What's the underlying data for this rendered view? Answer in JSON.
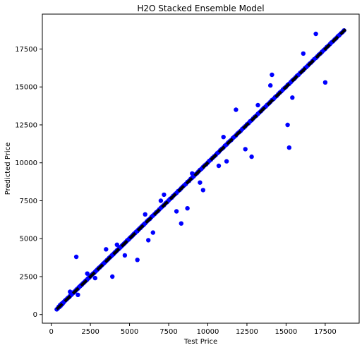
{
  "chart_data": {
    "type": "scatter",
    "title": "H2O Stacked Ensemble  Model",
    "xlabel": "Test Price",
    "ylabel": "Predicted Price",
    "xlim": [
      -570,
      19670
    ],
    "ylim": [
      -570,
      19800
    ],
    "xticks": [
      0,
      2500,
      5000,
      7500,
      10000,
      12500,
      15000,
      17500
    ],
    "xtick_labels": [
      "0",
      "2500",
      "5000",
      "7500",
      "10000",
      "12500",
      "15000",
      "17500"
    ],
    "yticks": [
      0,
      2500,
      5000,
      7500,
      10000,
      12500,
      15000,
      17500
    ],
    "ytick_labels": [
      "0",
      "2500",
      "5000",
      "7500",
      "10000",
      "12500",
      "15000",
      "17500"
    ],
    "grid": false,
    "legend": "none",
    "marker_color": "#0000ff",
    "line_color": "#000000",
    "reference_line": {
      "x": [
        350,
        18800
      ],
      "y": [
        350,
        18800
      ],
      "style": "dashed"
    },
    "series": [
      {
        "x": [
          350,
          420,
          480,
          520,
          560,
          600,
          650,
          700,
          720,
          780,
          820,
          870,
          900,
          950,
          1000,
          1050,
          1100,
          1150,
          1200,
          1250,
          1300,
          1350,
          1400,
          1450,
          1500,
          1550,
          1600,
          1650,
          1700,
          1750,
          1800,
          1850,
          1900,
          1950,
          2000,
          2050,
          2100,
          2150,
          2200,
          2250,
          2300,
          2350,
          2400,
          2450,
          2500,
          2550,
          2600,
          2650,
          2700,
          2750,
          2800,
          2850,
          2900,
          2950,
          3000,
          3050,
          3100,
          3150,
          3200,
          3250,
          3300,
          3350,
          3400,
          3450,
          3500,
          3550,
          3600,
          3650,
          3700,
          3750,
          3800,
          3850,
          3900,
          3950,
          4000,
          4050,
          4100,
          4150,
          4200,
          4250,
          4300,
          4350,
          4400,
          4450,
          4500,
          4550,
          4600,
          4650,
          4700,
          4750,
          4800,
          4850,
          4900,
          4950,
          5000,
          5050,
          5100,
          5150,
          5200,
          5250,
          5300,
          5350,
          5400,
          5450,
          5500,
          5550,
          5600,
          5650,
          5700,
          5750,
          5800,
          5850,
          5900,
          5950,
          6000,
          6100,
          6200,
          6300,
          6400,
          6500,
          6600,
          6700,
          6800,
          6900,
          7000,
          7100,
          7200,
          7300,
          7400,
          7500,
          7600,
          7700,
          7800,
          7900,
          8000,
          8100,
          8200,
          8300,
          8400,
          8500,
          8600,
          8700,
          8800,
          8900,
          9000,
          9100,
          9200,
          9300,
          9400,
          9500,
          9600,
          9700,
          9800,
          9900,
          10000,
          10100,
          10200,
          10300,
          10400,
          10500,
          10600,
          10700,
          10800,
          10900,
          11000,
          11100,
          11200,
          11300,
          11400,
          11500,
          11600,
          11700,
          11800,
          11900,
          12000,
          12100,
          12200,
          12300,
          12400,
          12500,
          12600,
          12700,
          12800,
          12900,
          13000,
          13100,
          13200,
          13300,
          13400,
          13500,
          13600,
          13700,
          13800,
          13900,
          14000,
          14100,
          14200,
          14300,
          14400,
          14500,
          14600,
          14700,
          14800,
          14900,
          15000,
          15100,
          15200,
          15300,
          15400,
          15500,
          15600,
          15700,
          15800,
          15900,
          16000,
          16100,
          16200,
          16300,
          16400,
          16500,
          16600,
          16700,
          16800,
          16900,
          17000,
          17100,
          17200,
          17300,
          17400,
          17500,
          17600,
          17700,
          17800,
          17900,
          18000,
          18100,
          18200,
          18300,
          18400,
          18500,
          18600,
          18700,
          1600,
          3900,
          5500,
          6200,
          7000,
          8300,
          8700,
          9700,
          10700,
          11200,
          11800,
          12800,
          14100,
          15200,
          16100,
          16900,
          17500,
          15100,
          15400,
          14000,
          13200,
          12400,
          11000,
          9500,
          9000,
          8000,
          7200,
          6500,
          6000,
          4700,
          4200,
          3500,
          2800,
          2300,
          1700,
          1200
        ],
        "y": [
          340,
          410,
          520,
          500,
          620,
          580,
          700,
          680,
          760,
          790,
          850,
          900,
          930,
          980,
          1020,
          1080,
          1120,
          1160,
          1230,
          1280,
          1320,
          1390,
          1420,
          1480,
          1510,
          1570,
          1620,
          1680,
          1710,
          1780,
          1830,
          1870,
          1930,
          1960,
          2030,
          2070,
          2120,
          2170,
          2230,
          2260,
          2320,
          2380,
          2410,
          2470,
          2520,
          2570,
          2620,
          2680,
          2710,
          2760,
          2820,
          2870,
          2920,
          2970,
          3020,
          3080,
          3110,
          3170,
          3220,
          3260,
          3330,
          3370,
          3420,
          3470,
          3520,
          3580,
          3620,
          3660,
          3730,
          3770,
          3820,
          3870,
          3930,
          3960,
          4020,
          4080,
          4120,
          4170,
          4230,
          4270,
          4320,
          4360,
          4420,
          4470,
          4520,
          4580,
          4610,
          4670,
          4720,
          4760,
          4820,
          4880,
          4920,
          4960,
          5030,
          5070,
          5120,
          5170,
          5210,
          5280,
          5330,
          5360,
          5430,
          5470,
          5510,
          5580,
          5620,
          5680,
          5710,
          5780,
          5820,
          5880,
          5910,
          5980,
          6010,
          6130,
          6230,
          6310,
          6430,
          6520,
          6620,
          6730,
          6810,
          6920,
          7030,
          7120,
          7210,
          7330,
          7410,
          7520,
          7630,
          7710,
          7830,
          7920,
          8010,
          8130,
          8210,
          8320,
          8430,
          8520,
          8610,
          8730,
          8810,
          8930,
          9020,
          9110,
          9230,
          9310,
          9420,
          9530,
          9610,
          9720,
          9830,
          9910,
          10020,
          10130,
          10210,
          10320,
          10420,
          10510,
          10630,
          10710,
          10830,
          10920,
          11010,
          11130,
          11210,
          11330,
          11420,
          11510,
          11630,
          11720,
          11810,
          11930,
          12020,
          12110,
          12230,
          12320,
          12410,
          12530,
          12610,
          12730,
          12810,
          12920,
          13030,
          13110,
          13230,
          13320,
          13410,
          13520,
          13630,
          13710,
          13830,
          13910,
          14020,
          14130,
          14210,
          14330,
          14410,
          14520,
          14630,
          14710,
          14830,
          14920,
          15010,
          15130,
          15210,
          15320,
          15430,
          15510,
          15620,
          15730,
          15810,
          15930,
          16020,
          16110,
          16230,
          16310,
          16420,
          16530,
          16610,
          16720,
          16830,
          16910,
          17020,
          17130,
          17210,
          17320,
          17420,
          17510,
          17630,
          17710,
          17820,
          17930,
          18010,
          18120,
          18210,
          18330,
          18410,
          18520,
          18610,
          18720,
          3800,
          2500,
          3600,
          4900,
          7500,
          6000,
          7000,
          8200,
          9800,
          10100,
          13500,
          10400,
          15800,
          11000,
          17200,
          18500,
          15300,
          12500,
          14300,
          15100,
          13800,
          10900,
          11700,
          8700,
          9300,
          6800,
          7900,
          5400,
          6600,
          3900,
          4600,
          4300,
          2400,
          2700,
          1300,
          1500
        ]
      }
    ]
  }
}
